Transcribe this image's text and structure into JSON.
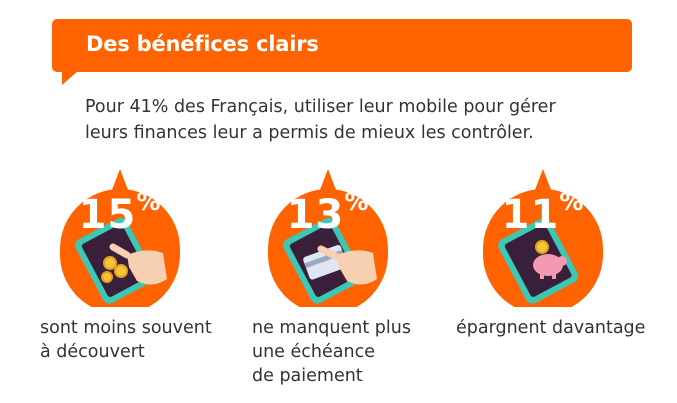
{
  "banner": {
    "title": "Des bénéfices clairs"
  },
  "intro": "Pour 41% des Français, utiliser leur mobile pour gérer leurs finances leur a permis de mieux les contrôler.",
  "colors": {
    "accent": "#ff6200",
    "phone_frame": "#3cc8b4",
    "phone_screen": "#3a1f3a",
    "text": "#333333"
  },
  "stats": [
    {
      "number": "15",
      "unit": "%",
      "label_lines": [
        "sont moins souvent",
        "à découvert"
      ],
      "icon": "phone-coins-icon"
    },
    {
      "number": "13",
      "unit": "%",
      "label_lines": [
        "ne manquent plus",
        "une échéance",
        "de paiement"
      ],
      "icon": "phone-card-icon"
    },
    {
      "number": "11",
      "unit": "%",
      "label_lines": [
        "épargnent davantage"
      ],
      "icon": "phone-piggy-bank-icon"
    }
  ]
}
